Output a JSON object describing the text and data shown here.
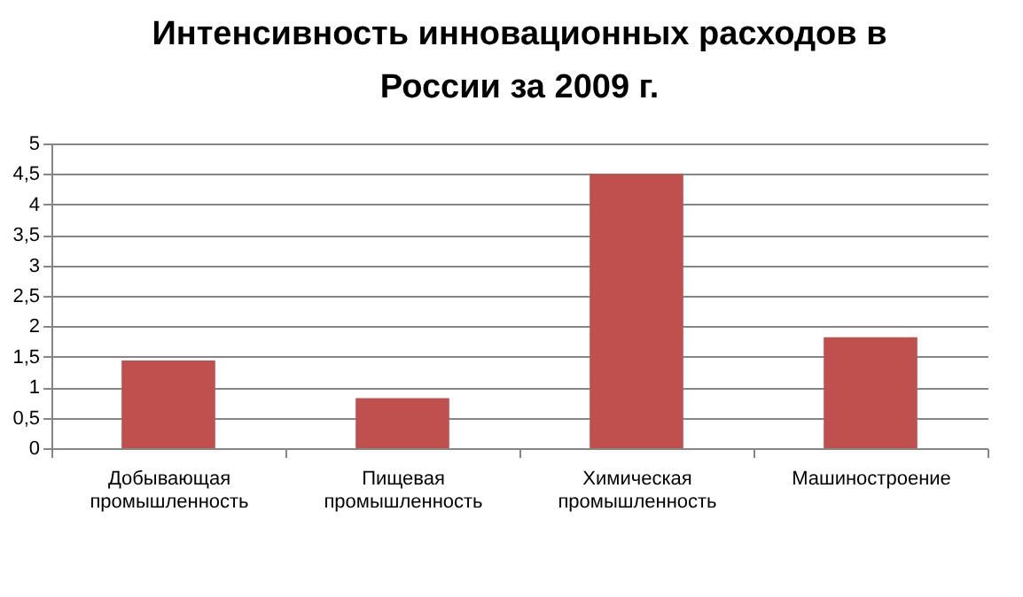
{
  "chart_data": {
    "type": "bar",
    "title": "Интенсивность инновационных расходов в России за 2009 г.",
    "categories": [
      "Добывающая промышленность",
      "Пищевая промышленность",
      "Химическая промышленность",
      "Машиностроение"
    ],
    "values": [
      1.44,
      0.82,
      4.5,
      1.82
    ],
    "color": "#c0504d",
    "ylim": [
      0,
      5
    ],
    "yticks": [
      0,
      {
        "value": 0.5,
        "label": "0,5"
      },
      1,
      {
        "value": 1.5,
        "label": "1,5"
      },
      2,
      {
        "value": 2.5,
        "label": "2,5"
      },
      3,
      {
        "value": 3.5,
        "label": "3,5"
      },
      4,
      {
        "value": 4.5,
        "label": "4,5"
      },
      5
    ],
    "grid": "y"
  }
}
